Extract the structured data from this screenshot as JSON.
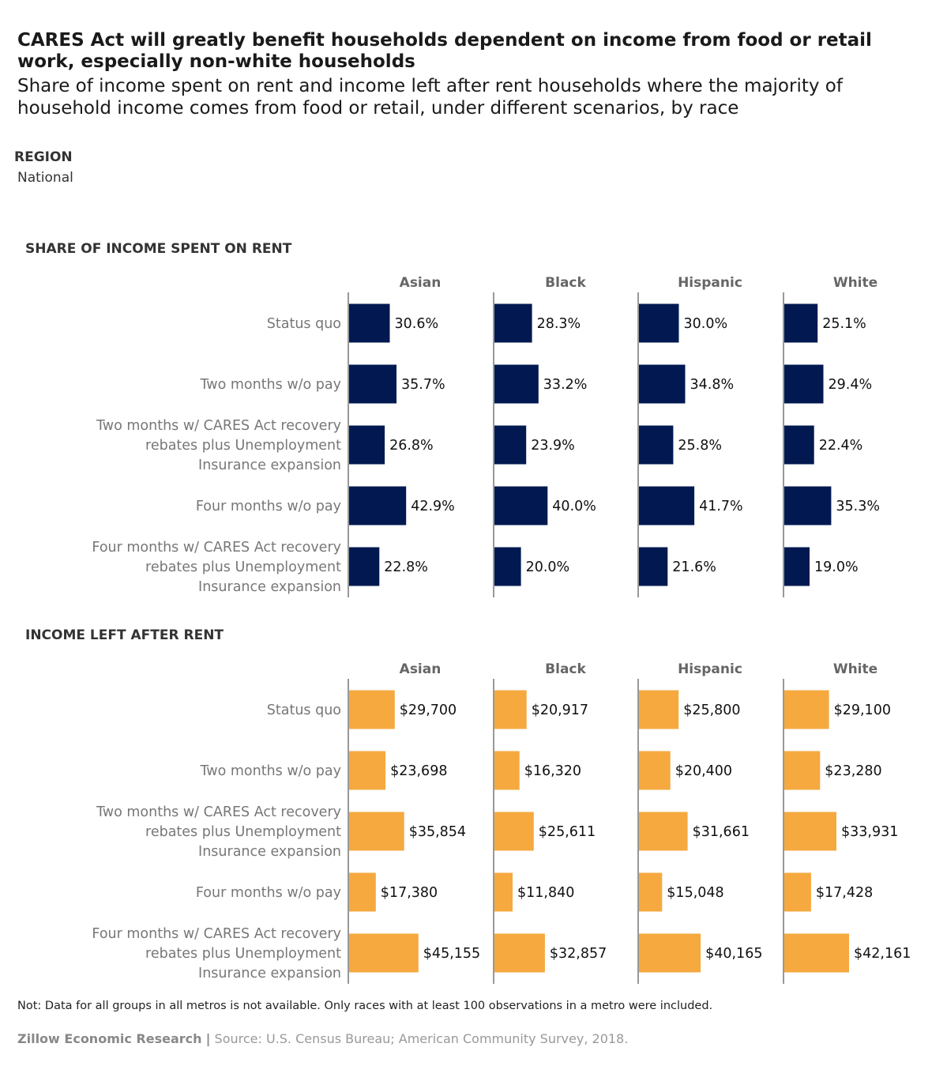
{
  "title": "CARES Act will greatly benefit households dependent on income from food or retail work, especially non-white households",
  "subtitle": "Share of income spent on rent and income left after rent households where the majority of household income comes from food or retail, under different scenarios, by race",
  "filter": {
    "label": "REGION",
    "value": "National"
  },
  "note": "Not: Data for all groups in all metros is not available. Only races with at least 100 observations in a metro were included.",
  "footer": {
    "brand": "Zillow Economic Research",
    "separator": "|",
    "source": "Source: U.S. Census Bureau; American Community Survey, 2018."
  },
  "colors": {
    "rent_bar": "#011950",
    "income_bar": "#F5A93F",
    "divider": "#555555"
  },
  "chart_data": [
    {
      "type": "bar",
      "orientation": "horizontal",
      "title": "SHARE OF INCOME SPENT ON RENT",
      "columns": [
        "Asian",
        "Black",
        "Hispanic",
        "White"
      ],
      "categories": [
        "Status quo",
        "Two months w/o pay",
        "Two months w/ CARES Act recovery rebates plus Unemployment Insurance expansion",
        "Four months w/o pay",
        "Four months w/ CARES Act recovery rebates plus Unemployment Insurance expansion"
      ],
      "series": [
        {
          "name": "Asian",
          "values": [
            30.6,
            35.7,
            26.8,
            42.9,
            22.8
          ],
          "labels": [
            "30.6%",
            "35.7%",
            "26.8%",
            "42.9%",
            "22.8%"
          ]
        },
        {
          "name": "Black",
          "values": [
            28.3,
            33.2,
            23.9,
            40.0,
            20.0
          ],
          "labels": [
            "28.3%",
            "33.2%",
            "23.9%",
            "40.0%",
            "20.0%"
          ]
        },
        {
          "name": "Hispanic",
          "values": [
            30.0,
            34.8,
            25.8,
            41.7,
            21.6
          ],
          "labels": [
            "30.0%",
            "34.8%",
            "25.8%",
            "41.7%",
            "21.6%"
          ]
        },
        {
          "name": "White",
          "values": [
            25.1,
            29.4,
            22.4,
            35.3,
            19.0
          ],
          "labels": [
            "25.1%",
            "29.4%",
            "22.4%",
            "35.3%",
            "19.0%"
          ]
        }
      ],
      "xlim": [
        0,
        100
      ],
      "grid": false,
      "legend": "none"
    },
    {
      "type": "bar",
      "orientation": "horizontal",
      "title": "INCOME LEFT AFTER RENT",
      "columns": [
        "Asian",
        "Black",
        "Hispanic",
        "White"
      ],
      "categories": [
        "Status quo",
        "Two months w/o pay",
        "Two months w/ CARES Act recovery rebates plus Unemployment Insurance expansion",
        "Four months w/o pay",
        "Four months w/ CARES Act recovery rebates plus Unemployment Insurance expansion"
      ],
      "series": [
        {
          "name": "Asian",
          "values": [
            29700,
            23698,
            35854,
            17380,
            45155
          ],
          "labels": [
            "$29,700",
            "$23,698",
            "$35,854",
            "$17,380",
            "$45,155"
          ]
        },
        {
          "name": "Black",
          "values": [
            20917,
            16320,
            25611,
            11840,
            32857
          ],
          "labels": [
            "$20,917",
            "$16,320",
            "$25,611",
            "$11,840",
            "$32,857"
          ]
        },
        {
          "name": "Hispanic",
          "values": [
            25800,
            20400,
            31661,
            15048,
            40165
          ],
          "labels": [
            "$25,800",
            "$20,400",
            "$31,661",
            "$15,048",
            "$40,165"
          ]
        },
        {
          "name": "White",
          "values": [
            29100,
            23280,
            33931,
            17428,
            42161
          ],
          "labels": [
            "$29,100",
            "$23,280",
            "$33,931",
            "$17,428",
            "$42,161"
          ]
        }
      ],
      "xlim": [
        0,
        95000
      ],
      "grid": false,
      "legend": "none"
    }
  ]
}
